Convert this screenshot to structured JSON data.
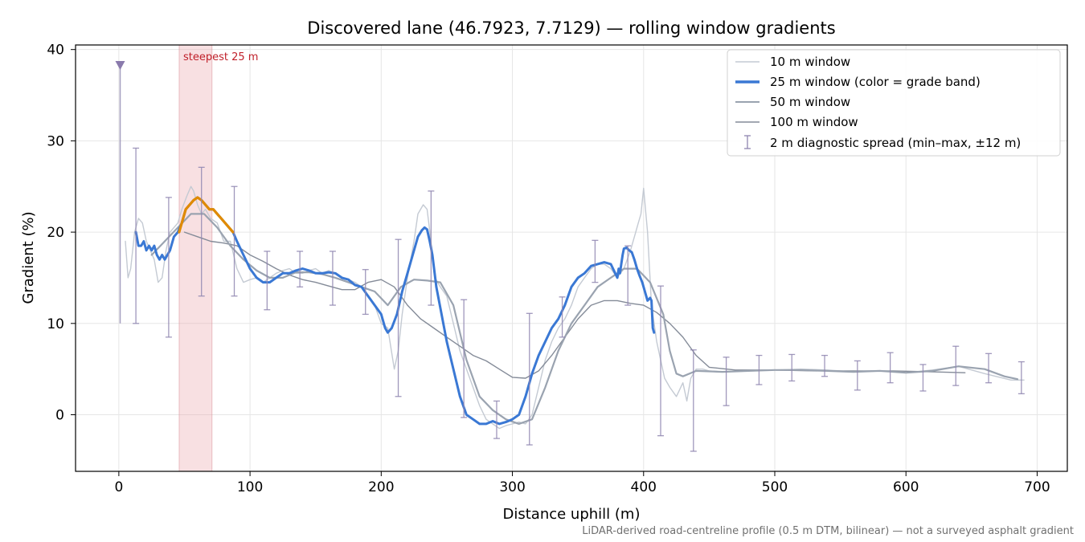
{
  "chart_data": {
    "type": "line",
    "title": "Discovered lane (46.7923, 7.7129) — rolling window gradients",
    "xlabel": "Distance uphill (m)",
    "ylabel": "Gradient (%)",
    "xlim": [
      -33,
      723
    ],
    "ylim": [
      -6.2,
      40.5
    ],
    "xticks": [
      0,
      100,
      200,
      300,
      400,
      500,
      600,
      700
    ],
    "yticks": [
      0,
      10,
      20,
      30,
      40
    ],
    "grid": true,
    "legend_position": "top-right",
    "footnote": "LiDAR-derived road-centreline profile (0.5 m DTM, bilinear) — not a surveyed asphalt gradient",
    "highlight": {
      "x_range": [
        46,
        71
      ],
      "label": "steepest 25 m",
      "color": "#c0202a"
    },
    "marker": {
      "x": 1,
      "y": 38.3,
      "low": 10
    },
    "colors": {
      "w10": "#c4cad3",
      "w25": "#3a78d4",
      "w25_steep": "#e08a00",
      "w50": "#9aa3b0",
      "w100": "#848b98",
      "spread": "#8f86b0"
    },
    "legend": [
      {
        "key": "w10",
        "label": "10 m window"
      },
      {
        "key": "w25",
        "label": "25 m window (color = grade band)"
      },
      {
        "key": "w50",
        "label": "50 m window"
      },
      {
        "key": "w100",
        "label": "100 m window"
      },
      {
        "key": "spread",
        "label": "2 m diagnostic spread (min–max, ±12 m)"
      }
    ],
    "series": [
      {
        "name": "10 m window",
        "key": "w10",
        "x": [
          5,
          7,
          9,
          12,
          15,
          18,
          21,
          24,
          27,
          30,
          33,
          36,
          39,
          42,
          45,
          48,
          52,
          55,
          57,
          60,
          63,
          66,
          70,
          75,
          80,
          85,
          90,
          95,
          100,
          105,
          110,
          115,
          120,
          125,
          130,
          135,
          140,
          145,
          150,
          155,
          160,
          165,
          170,
          175,
          180,
          185,
          190,
          195,
          200,
          205,
          210,
          213,
          216,
          220,
          225,
          228,
          232,
          235,
          238,
          241,
          245,
          250,
          255,
          260,
          265,
          270,
          275,
          280,
          285,
          290,
          295,
          300,
          305,
          310,
          315,
          320,
          325,
          330,
          335,
          340,
          345,
          350,
          355,
          360,
          365,
          370,
          375,
          380,
          385,
          390,
          394,
          396,
          398,
          400,
          403,
          406,
          410,
          413,
          416,
          420,
          425,
          430,
          433,
          436,
          440,
          445,
          450,
          460,
          480,
          500,
          520,
          540,
          560,
          580,
          600,
          620,
          640,
          660,
          680,
          690
        ],
        "y": [
          19,
          15,
          16,
          20,
          21.5,
          21,
          19,
          18,
          17,
          14.5,
          15,
          18,
          20,
          20.5,
          21,
          22.5,
          24,
          25,
          24.5,
          23,
          22,
          22.5,
          21.5,
          21,
          19,
          19,
          16,
          14.5,
          14.8,
          15,
          14.5,
          15,
          15.5,
          15.8,
          16,
          15.5,
          15.5,
          15.8,
          16,
          15.5,
          15.8,
          15.5,
          15,
          14.8,
          14.5,
          14,
          13,
          12,
          10,
          9.5,
          5,
          7,
          11,
          15,
          19,
          22,
          23,
          22.5,
          19,
          15,
          14,
          13,
          10,
          7,
          5,
          3,
          1,
          -0.5,
          -1,
          -1.5,
          -1.2,
          -1,
          -0.8,
          -1,
          0,
          3,
          6,
          8,
          9.5,
          10.5,
          12,
          14,
          15,
          16,
          16.5,
          16.5,
          16,
          15,
          16,
          18,
          20,
          21,
          22,
          24.8,
          20,
          12,
          8,
          6,
          4,
          3,
          2,
          3.5,
          1.5,
          4,
          5,
          5,
          4.8,
          4.7,
          4.8,
          4.9,
          5,
          4.9,
          4.7,
          4.8,
          4.6,
          4.9,
          5.3,
          4.5,
          3.8,
          3.8
        ]
      },
      {
        "name": "25 m window (color = grade band)",
        "key": "w25",
        "x": [
          13,
          15,
          17,
          19,
          21,
          23,
          25,
          27,
          29,
          31,
          33,
          35,
          37,
          39,
          42,
          45,
          48,
          51,
          54,
          57,
          60,
          63,
          66,
          69,
          72,
          75,
          78,
          81,
          84,
          87,
          90,
          95,
          100,
          105,
          110,
          115,
          120,
          125,
          130,
          135,
          140,
          145,
          150,
          155,
          160,
          165,
          170,
          175,
          180,
          185,
          190,
          195,
          200,
          203,
          205,
          208,
          212,
          216,
          220,
          224,
          228,
          231,
          233,
          235,
          237,
          239,
          242,
          246,
          250,
          255,
          260,
          265,
          270,
          275,
          280,
          285,
          290,
          295,
          300,
          305,
          310,
          315,
          320,
          325,
          330,
          335,
          340,
          345,
          350,
          355,
          360,
          365,
          370,
          375,
          380,
          381,
          382,
          383,
          384,
          385,
          387,
          389,
          391,
          393,
          395,
          397,
          399,
          401,
          403,
          405,
          406,
          407,
          408
        ],
        "y": [
          20,
          18.5,
          18.5,
          19,
          18,
          18.5,
          18,
          18.5,
          17.5,
          17,
          17.5,
          17,
          17.5,
          18,
          19.5,
          20,
          21,
          22.5,
          23,
          23.5,
          23.8,
          23.5,
          23,
          22.5,
          22.5,
          22,
          21.5,
          21,
          20.5,
          20,
          19,
          17.5,
          16,
          15,
          14.5,
          14.5,
          15,
          15.5,
          15.5,
          15.8,
          16,
          15.8,
          15.5,
          15.5,
          15.6,
          15.5,
          15,
          14.8,
          14.2,
          14,
          13,
          12,
          11,
          9.5,
          9,
          9.5,
          11,
          13.5,
          15.5,
          17.5,
          19.5,
          20.2,
          20.5,
          20.3,
          19,
          17.5,
          14,
          11,
          8,
          5,
          2,
          0,
          -0.5,
          -1,
          -1,
          -0.7,
          -1,
          -0.8,
          -0.5,
          0,
          2,
          4.5,
          6.5,
          8,
          9.5,
          10.5,
          12,
          14,
          15,
          15.5,
          16.3,
          16.5,
          16.7,
          16.5,
          15,
          16,
          15.5,
          16.5,
          17.5,
          18.2,
          18.3,
          18,
          17.8,
          17,
          16,
          15.2,
          14.5,
          13.5,
          12.5,
          12.8,
          12.5,
          9.5,
          9
        ]
      },
      {
        "name": "50 m window",
        "key": "w50",
        "x": [
          25,
          35,
          45,
          55,
          65,
          75,
          85,
          95,
          105,
          115,
          125,
          135,
          145,
          155,
          165,
          175,
          185,
          195,
          205,
          215,
          225,
          235,
          245,
          255,
          265,
          275,
          285,
          295,
          305,
          315,
          325,
          335,
          345,
          355,
          365,
          375,
          385,
          395,
          405,
          415,
          420,
          425,
          430,
          440,
          460,
          480,
          500,
          520,
          540,
          560,
          580,
          600,
          620,
          640,
          660,
          675,
          685
        ],
        "y": [
          17.5,
          19,
          20.5,
          22,
          22,
          20.5,
          18.5,
          17,
          15.8,
          15,
          15,
          15.6,
          15.6,
          15.4,
          15,
          14.5,
          14,
          13.5,
          12,
          14,
          14.8,
          14.7,
          14.5,
          12,
          6,
          2,
          0.5,
          -0.5,
          -1,
          -0.5,
          3,
          7,
          10,
          12,
          14,
          15,
          16,
          16,
          14.5,
          11,
          7,
          4.5,
          4.2,
          4.8,
          4.7,
          4.8,
          4.9,
          4.9,
          4.8,
          4.7,
          4.8,
          4.6,
          4.8,
          5.3,
          5,
          4.2,
          3.9
        ]
      },
      {
        "name": "100 m window",
        "key": "w100",
        "x": [
          50,
          60,
          70,
          80,
          90,
          100,
          110,
          120,
          130,
          140,
          150,
          160,
          170,
          180,
          190,
          200,
          210,
          220,
          230,
          240,
          250,
          260,
          270,
          280,
          290,
          300,
          310,
          320,
          330,
          340,
          350,
          360,
          370,
          380,
          390,
          400,
          410,
          420,
          430,
          440,
          450,
          470,
          500,
          530,
          560,
          590,
          620,
          645
        ],
        "y": [
          20,
          19.5,
          19,
          18.8,
          18.5,
          17.5,
          16.8,
          16,
          15.3,
          14.8,
          14.5,
          14.1,
          13.7,
          13.7,
          14.5,
          14.8,
          14,
          12,
          10.5,
          9.5,
          8.5,
          7.5,
          6.5,
          5.9,
          5,
          4.1,
          4,
          4.8,
          6.5,
          8.5,
          10.5,
          12,
          12.5,
          12.5,
          12.2,
          12,
          11.2,
          10,
          8.5,
          6.5,
          5.2,
          4.9,
          4.9,
          4.8,
          4.8,
          4.8,
          4.7,
          4.6
        ]
      }
    ],
    "steep_segment": {
      "name": "25 m window steepest band",
      "x": [
        46,
        48,
        51,
        54,
        57,
        60,
        63,
        66,
        69,
        72,
        75,
        78,
        81,
        84,
        87
      ],
      "y": [
        20,
        21,
        22.5,
        23,
        23.5,
        23.8,
        23.5,
        23,
        22.5,
        22.5,
        22,
        21.5,
        21,
        20.5,
        20
      ]
    },
    "error_bars": {
      "name": "2 m diagnostic spread (min–max, ±12 m)",
      "x": [
        13,
        38,
        63,
        88,
        113,
        138,
        163,
        188,
        213,
        238,
        263,
        288,
        313,
        338,
        363,
        388,
        413,
        438,
        463,
        488,
        513,
        538,
        563,
        588,
        613,
        638,
        663,
        688
      ],
      "low": [
        10,
        8.5,
        13,
        13,
        11.5,
        14,
        12,
        11,
        2,
        12,
        -0.3,
        -2.6,
        -3.3,
        8.5,
        14.5,
        12,
        -2.3,
        -4,
        1,
        3.3,
        3.7,
        4.2,
        2.7,
        3.5,
        2.6,
        3.2,
        3.5,
        2.3
      ],
      "high": [
        29.2,
        23.8,
        27.1,
        25,
        17.9,
        17.9,
        17.9,
        15.9,
        19.2,
        24.5,
        12.6,
        1.5,
        11.1,
        12.9,
        19.1,
        18.5,
        14.1,
        7.1,
        6.3,
        6.5,
        6.6,
        6.5,
        5.9,
        6.8,
        5.5,
        7.5,
        6.7,
        5.8
      ]
    }
  }
}
